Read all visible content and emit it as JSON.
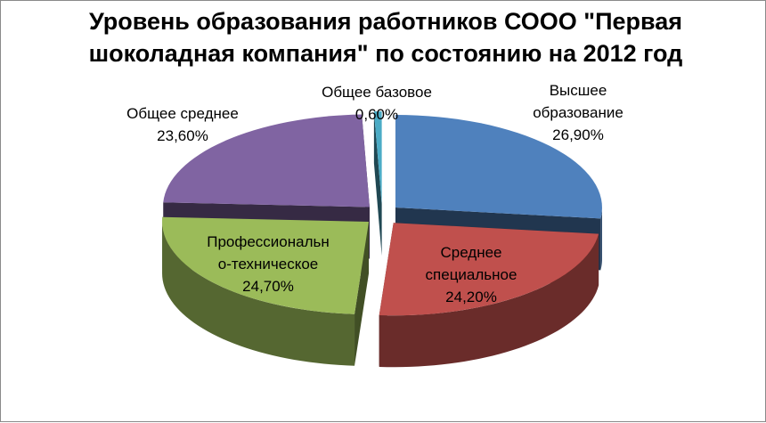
{
  "chart_data": {
    "type": "pie",
    "title_lines": [
      "Уровень образования работников СООО \"Первая",
      "шоколадная компания\" по состоянию на 2012 год"
    ],
    "slices": [
      {
        "label_lines": [
          "Высшее",
          "образование"
        ],
        "value_text": "26,90%",
        "value": 26.9,
        "color": "#4F81BD"
      },
      {
        "label_lines": [
          "Среднее",
          "специальное"
        ],
        "value_text": "24,20%",
        "value": 24.2,
        "color": "#C0504D"
      },
      {
        "label_lines": [
          "Профессиональн",
          "о-техническое"
        ],
        "value_text": "24,70%",
        "value": 24.7,
        "color": "#9BBB59"
      },
      {
        "label_lines": [
          "Общее среднее"
        ],
        "value_text": "23,60%",
        "value": 23.6,
        "color": "#8064A2"
      },
      {
        "label_lines": [
          "Общее базовое"
        ],
        "value_text": "0,60%",
        "value": 0.6,
        "color": "#4BACC6"
      }
    ],
    "legend": "none"
  }
}
